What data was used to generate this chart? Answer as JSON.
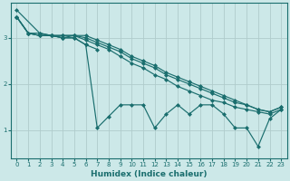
{
  "xlabel": "Humidex (Indice chaleur)",
  "background_color": "#cce8e8",
  "grid_color": "#b0cccc",
  "line_color": "#1a6e6e",
  "xlim": [
    -0.5,
    23.5
  ],
  "ylim": [
    0.4,
    3.75
  ],
  "yticks": [
    1,
    2,
    3
  ],
  "xticks": [
    0,
    1,
    2,
    3,
    4,
    5,
    6,
    7,
    8,
    9,
    10,
    11,
    12,
    13,
    14,
    15,
    16,
    17,
    18,
    19,
    20,
    21,
    22,
    23
  ],
  "lines": [
    {
      "x": [
        0,
        1,
        2,
        3,
        4,
        5,
        6,
        7,
        8,
        9,
        10,
        11,
        12,
        13,
        14,
        15,
        16,
        17,
        18,
        19,
        20,
        21,
        22,
        23
      ],
      "y": [
        3.45,
        3.1,
        3.05,
        3.05,
        3.0,
        3.0,
        2.85,
        1.05,
        1.3,
        1.55,
        1.55,
        1.55,
        1.05,
        1.35,
        1.55,
        1.35,
        1.55,
        1.55,
        1.35,
        1.05,
        1.05,
        0.65,
        1.25,
        1.45
      ]
    },
    {
      "x": [
        0,
        1,
        2,
        3,
        4,
        5,
        6,
        7,
        8,
        9,
        10,
        11,
        12,
        13,
        14,
        15,
        16,
        17,
        18,
        19,
        20,
        21,
        22,
        23
      ],
      "y": [
        3.45,
        3.1,
        3.05,
        3.05,
        3.0,
        3.05,
        2.95,
        2.85,
        2.75,
        2.6,
        2.45,
        2.35,
        2.2,
        2.1,
        1.95,
        1.85,
        1.75,
        1.65,
        1.6,
        1.5,
        1.45,
        1.4,
        1.35,
        1.45
      ]
    },
    {
      "x": [
        0,
        1,
        2,
        3,
        4,
        5,
        6,
        7,
        8,
        9,
        10,
        11,
        12,
        13,
        14,
        15,
        16,
        17,
        18,
        19,
        20,
        21,
        22,
        23
      ],
      "y": [
        3.45,
        3.1,
        3.1,
        3.05,
        3.05,
        3.05,
        3.0,
        2.9,
        2.8,
        2.7,
        2.55,
        2.45,
        2.35,
        2.2,
        2.1,
        2.0,
        1.9,
        1.8,
        1.7,
        1.6,
        1.55,
        1.45,
        1.4,
        1.5
      ]
    },
    {
      "x": [
        0,
        2,
        3,
        4,
        5,
        6,
        7,
        8,
        9,
        10,
        11,
        12,
        13,
        14,
        15,
        16,
        17,
        18,
        19,
        20,
        21,
        22,
        23
      ],
      "y": [
        3.6,
        3.1,
        3.05,
        3.05,
        3.05,
        3.05,
        2.95,
        2.85,
        2.75,
        2.6,
        2.5,
        2.4,
        2.25,
        2.15,
        2.05,
        1.95,
        1.85,
        1.75,
        1.65,
        1.55,
        1.45,
        1.4,
        1.5
      ]
    },
    {
      "x": [
        0,
        1,
        2,
        3,
        4,
        5,
        6,
        7
      ],
      "y": [
        3.45,
        3.1,
        3.05,
        3.05,
        3.0,
        3.0,
        2.85,
        2.75
      ]
    }
  ]
}
